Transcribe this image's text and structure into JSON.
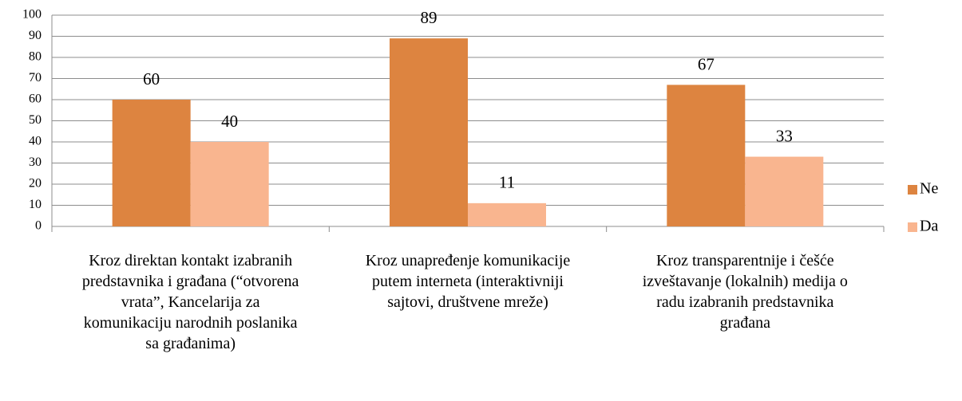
{
  "chart_data": {
    "type": "bar",
    "categories": [
      "Kroz direktan kontakt izabranih predstavnika i građana (“otvorena vrata”, Kancelarija za komunikaciju narodnih poslanika sa građanima)",
      "Kroz unapređenje komunikacije putem interneta (interaktivniji sajtovi, društvene mreže)",
      "Kroz transparentnije i češće izveštavanje (lokalnih) medija o radu izabranih predstavnika građana"
    ],
    "series": [
      {
        "name": "Ne",
        "color": "#dd8440",
        "values": [
          60,
          89,
          67
        ]
      },
      {
        "name": "Da",
        "color": "#f9b58f",
        "values": [
          40,
          11,
          33
        ]
      }
    ],
    "ylim": [
      0,
      100
    ],
    "yticks": [
      0,
      10,
      20,
      30,
      40,
      50,
      60,
      70,
      80,
      90,
      100
    ],
    "grid": true,
    "legend": "right"
  }
}
